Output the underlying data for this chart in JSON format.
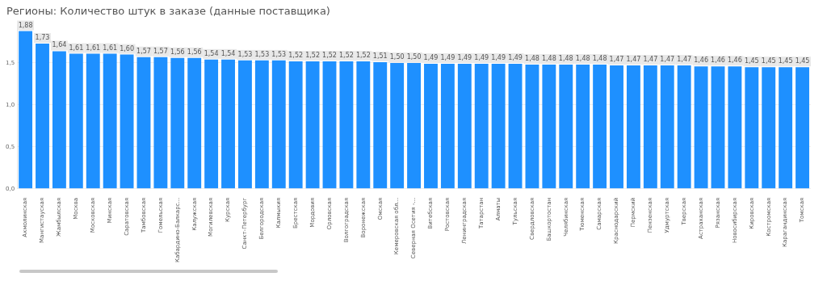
{
  "chart_data": {
    "type": "bar",
    "title": "Регионы: Количество штук в заказе (данные поставщика)",
    "categories": [
      "Акмолинская",
      "Мангистауская",
      "Жамбылская",
      "Москва",
      "Московская",
      "Минская",
      "Саратовская",
      "Тамбовская",
      "Гомельская",
      "Кабардино-Балкарс...",
      "Калужская",
      "Могилевская",
      "Курская",
      "Санкт-Петербург",
      "Белгородская",
      "Калмыкия",
      "Брестская",
      "Мордовия",
      "Орловская",
      "Волгоградская",
      "Воронежская",
      "Омская",
      "Кемеровская обл...",
      "Северная Осетия -...",
      "Витебская",
      "Ростовская",
      "Ленинградская",
      "Татарстан",
      "Алматы",
      "Тульская",
      "Свердловская",
      "Башкортостан",
      "Челябинская",
      "Тюменская",
      "Самарская",
      "Краснодарский",
      "Пермский",
      "Пензенская",
      "Удмуртская",
      "Тверская",
      "Астраханская",
      "Рязанская",
      "Новосибирская",
      "Кировская",
      "Костромская",
      "Карагандинская",
      "Томская"
    ],
    "values": [
      1.88,
      1.73,
      1.64,
      1.61,
      1.61,
      1.61,
      1.6,
      1.57,
      1.57,
      1.56,
      1.56,
      1.54,
      1.54,
      1.53,
      1.53,
      1.53,
      1.52,
      1.52,
      1.52,
      1.52,
      1.52,
      1.51,
      1.5,
      1.5,
      1.49,
      1.49,
      1.49,
      1.49,
      1.49,
      1.49,
      1.48,
      1.48,
      1.48,
      1.48,
      1.48,
      1.47,
      1.47,
      1.47,
      1.47,
      1.47,
      1.46,
      1.46,
      1.46,
      1.45,
      1.45,
      1.45,
      1.45
    ],
    "value_labels": [
      "1,88",
      "1,73",
      "1,64",
      "1,61",
      "1,61",
      "1,61",
      "1,60",
      "1,57",
      "1,57",
      "1,56",
      "1,56",
      "1,54",
      "1,54",
      "1,53",
      "1,53",
      "1,53",
      "1,52",
      "1,52",
      "1,52",
      "1,52",
      "1,52",
      "1,51",
      "1,50",
      "1,50",
      "1,49",
      "1,49",
      "1,49",
      "1,49",
      "1,49",
      "1,49",
      "1,48",
      "1,48",
      "1,48",
      "1,48",
      "1,48",
      "1,47",
      "1,47",
      "1,47",
      "1,47",
      "1,47",
      "1,46",
      "1,46",
      "1,46",
      "1,45",
      "1,45",
      "1,45",
      "1,45"
    ],
    "color": "#1e90ff",
    "ylim": [
      0,
      1.95
    ],
    "yticks": [
      {
        "value": 0,
        "label": "0,0"
      },
      {
        "value": 0.5,
        "label": "0,5"
      },
      {
        "value": 1,
        "label": "1,0"
      },
      {
        "value": 1.5,
        "label": "1,5"
      }
    ],
    "grid": "y",
    "legend": false
  }
}
